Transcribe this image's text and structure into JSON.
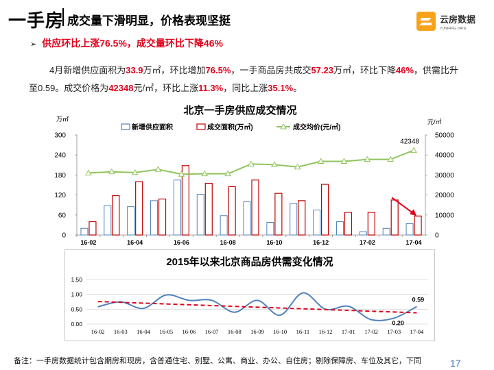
{
  "header": {
    "title": "一手房",
    "subtitle": "成交量下滑明显，价格表现坚挺",
    "logo_text": "云房数据",
    "logo_sub": "YUNFANG DATA"
  },
  "bullet": {
    "marker": "➢",
    "text": "供应环比上涨76.5%，成交量环比下降46%"
  },
  "paragraph": {
    "s1": "4月新增供应面积为",
    "v1": "33.9",
    "s2": "万㎡，环比增加",
    "v2": "76.5%",
    "s3": "，一手商品房共成交",
    "v3": "57.23",
    "s4": "万㎡，环比下降",
    "v4": "46%",
    "s5": "，供需比升至0.59。成交价格为",
    "v5": "42348",
    "s6": "元/㎡，环比上涨",
    "v6": "11.3%",
    "s7": "，同比上涨",
    "v7": "35.1%",
    "s8": "。"
  },
  "footnote": "备注：一手房数据统计包含期房和现房，含普通住宅、别墅、公寓、商业、办公、自住房；剔除保障房、车位及其它，下同",
  "page_number": "17",
  "colors": {
    "supply": "#4f81bd",
    "deal": "#c00000",
    "price": "#8fc45a",
    "ratio": "#4f81bd",
    "trend": "#e0001b"
  },
  "chart_data": [
    {
      "type": "bar",
      "title": "北京一手房供应成交情况",
      "y_unit_left": "万㎡",
      "y_unit_right": "元/㎡",
      "categories": [
        "16-02",
        "16-03",
        "16-04",
        "16-05",
        "16-06",
        "16-07",
        "16-08",
        "16-09",
        "16-10",
        "16-11",
        "16-12",
        "17-01",
        "17-02",
        "17-03",
        "17-04"
      ],
      "x_tick_labels": [
        "16-02",
        "16-04",
        "16-06",
        "16-08",
        "16-10",
        "16-12",
        "17-02",
        "17-04"
      ],
      "series": [
        {
          "name": "新增供应面积",
          "type": "bar",
          "axis": "left",
          "values": [
            20,
            88,
            85,
            103,
            165,
            122,
            58,
            100,
            38,
            95,
            75,
            40,
            10,
            20,
            34
          ]
        },
        {
          "name": "成交面积(万㎡)",
          "type": "bar",
          "axis": "left",
          "values": [
            40,
            118,
            160,
            108,
            208,
            155,
            145,
            165,
            125,
            103,
            152,
            68,
            68,
            105,
            57
          ]
        },
        {
          "name": "成交均价(元/㎡)",
          "type": "line",
          "axis": "right",
          "values": [
            31000,
            31600,
            31200,
            32800,
            30400,
            30600,
            30600,
            35500,
            35200,
            34000,
            36800,
            36800,
            37800,
            37800,
            42348
          ]
        }
      ],
      "point_label": "42348",
      "ylim_left": [
        0,
        300
      ],
      "yticks_left": [
        "0",
        "60",
        "120",
        "180",
        "240",
        "300"
      ],
      "ylim_right": [
        0,
        50000
      ],
      "yticks_right": [
        "0",
        "10000",
        "20000",
        "30000",
        "40000",
        "50000"
      ],
      "legend_position": "top"
    },
    {
      "type": "line",
      "title": "2015年以来北京商品房供需变化情况",
      "categories": [
        "16-02",
        "16-03",
        "16-04",
        "16-05",
        "16-06",
        "16-07",
        "16-08",
        "16-09",
        "16-10",
        "16-11",
        "16-12",
        "17-01",
        "17-02",
        "17-03",
        "17-04"
      ],
      "series": [
        {
          "values": [
            0.58,
            0.75,
            0.53,
            0.98,
            0.8,
            0.8,
            0.4,
            0.8,
            0.3,
            1.05,
            0.5,
            0.6,
            0.15,
            0.2,
            0.59
          ]
        }
      ],
      "trendline": {
        "start": 0.76,
        "end": 0.38
      },
      "point_labels": [
        {
          "index": 13,
          "text": "0.20"
        },
        {
          "index": 14,
          "text": "0.59"
        }
      ],
      "ylim": [
        0,
        1.5
      ],
      "yticks": [
        "0.00",
        "0.50",
        "1.00",
        "1.50"
      ]
    }
  ]
}
